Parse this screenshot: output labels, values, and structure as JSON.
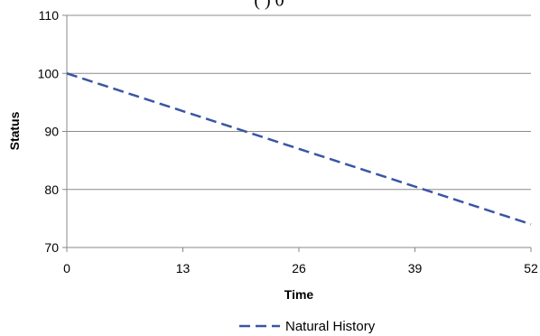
{
  "chart_data": {
    "type": "line",
    "title": "",
    "title_fragment": "(  )    0",
    "xlabel": "Time",
    "ylabel": "Status",
    "xlim": [
      0,
      52
    ],
    "ylim": [
      70,
      110
    ],
    "x_ticks": [
      "0",
      "13",
      "26",
      "39",
      "52"
    ],
    "y_ticks": [
      "70",
      "80",
      "90",
      "100",
      "110"
    ],
    "grid": "horizontal",
    "legend_position": "bottom-center",
    "series": [
      {
        "name": "Natural History",
        "color": "#3a55a4",
        "line_style": "dashed",
        "x": [
          0,
          13,
          26,
          39,
          52
        ],
        "values": [
          100,
          93.5,
          87,
          80.5,
          74
        ]
      }
    ]
  }
}
